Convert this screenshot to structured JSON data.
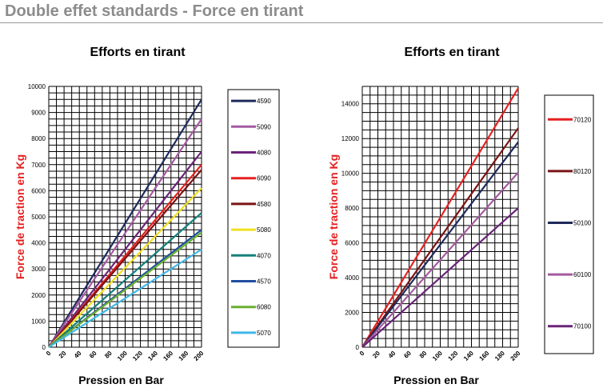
{
  "header": {
    "title": "Double effet standards - Force en tirant"
  },
  "chart_data": [
    {
      "type": "line",
      "title": "Efforts en tirant",
      "xlabel": "Pression en Bar",
      "ylabel": "Force de traction en Kg",
      "xlim": [
        0,
        200
      ],
      "ylim": [
        0,
        10000
      ],
      "xticks": [
        0,
        20,
        40,
        60,
        80,
        100,
        120,
        140,
        160,
        180,
        200
      ],
      "yticks": [
        0,
        1000,
        2000,
        3000,
        4000,
        5000,
        6000,
        7000,
        8000,
        9000,
        10000
      ],
      "grid": true,
      "legend": "right",
      "series": [
        {
          "name": "4590",
          "color": "#1f2a5c",
          "x": [
            0,
            200
          ],
          "y": [
            0,
            9500
          ]
        },
        {
          "name": "5090",
          "color": "#a45aa0",
          "x": [
            0,
            200
          ],
          "y": [
            0,
            8750
          ]
        },
        {
          "name": "4080",
          "color": "#6a2478",
          "x": [
            0,
            200
          ],
          "y": [
            0,
            7500
          ]
        },
        {
          "name": "6090",
          "color": "#e62020",
          "x": [
            0,
            200
          ],
          "y": [
            0,
            7000
          ]
        },
        {
          "name": "4580",
          "color": "#7a1414",
          "x": [
            0,
            200
          ],
          "y": [
            0,
            6800
          ]
        },
        {
          "name": "5080",
          "color": "#f0e020",
          "x": [
            0,
            200
          ],
          "y": [
            0,
            6100
          ]
        },
        {
          "name": "4070",
          "color": "#16807a",
          "x": [
            0,
            200
          ],
          "y": [
            0,
            5150
          ]
        },
        {
          "name": "4570",
          "color": "#1f4ea0",
          "x": [
            0,
            200
          ],
          "y": [
            0,
            4500
          ]
        },
        {
          "name": "6080",
          "color": "#6ab030",
          "x": [
            0,
            200
          ],
          "y": [
            0,
            4400
          ]
        },
        {
          "name": "5070",
          "color": "#40b8e8",
          "x": [
            0,
            200
          ],
          "y": [
            0,
            3750
          ]
        }
      ]
    },
    {
      "type": "line",
      "title": "Efforts en tirant",
      "xlabel": "Pression en Bar",
      "ylabel": "Force de traction en Kg",
      "xlim": [
        0,
        200
      ],
      "ylim": [
        0,
        15000
      ],
      "xticks": [
        0,
        20,
        40,
        60,
        80,
        100,
        120,
        140,
        160,
        180,
        200
      ],
      "yticks": [
        0,
        2000,
        4000,
        6000,
        8000,
        10000,
        12000,
        14000
      ],
      "grid": true,
      "legend": "right",
      "series": [
        {
          "name": "70120",
          "color": "#e62020",
          "x": [
            0,
            200
          ],
          "y": [
            0,
            14900
          ]
        },
        {
          "name": "80120",
          "color": "#7a1414",
          "x": [
            0,
            200
          ],
          "y": [
            0,
            12600
          ]
        },
        {
          "name": "50100",
          "color": "#1f2a5c",
          "x": [
            0,
            200
          ],
          "y": [
            0,
            11800
          ]
        },
        {
          "name": "60100",
          "color": "#a45aa0",
          "x": [
            0,
            200
          ],
          "y": [
            0,
            10050
          ]
        },
        {
          "name": "70100",
          "color": "#6a2478",
          "x": [
            0,
            200
          ],
          "y": [
            0,
            8000
          ]
        }
      ]
    }
  ]
}
